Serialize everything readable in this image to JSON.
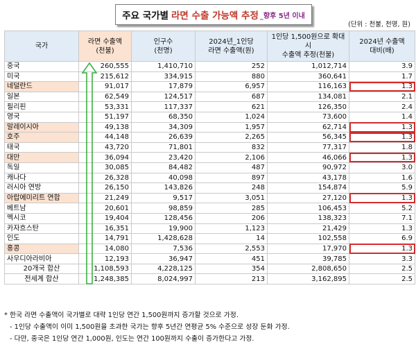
{
  "title": {
    "main": "주요 국가별",
    "highlight": "라면 수출 가능액 추정",
    "sub": "_향후 5년 이내"
  },
  "unit": "(단위 : 천불, 천명, 원)",
  "headers": [
    "국가",
    "라면 수출액\n(천불)",
    "인구수\n(천명)",
    "2024년_1인당\n라면 수출액(원)",
    "1인당 1,500원으로 확대시\n수출액 추정(천불)",
    "2024년 수출액\n대비(배)"
  ],
  "rows": [
    {
      "country": "중국",
      "export": "260,555",
      "pop": "1,410,710",
      "per": "252",
      "est": "1,012,714",
      "ratio": "3.9",
      "hl": false
    },
    {
      "country": "미국",
      "export": "215,612",
      "pop": "334,915",
      "per": "880",
      "est": "360,641",
      "ratio": "1.7",
      "hl": false
    },
    {
      "country": "네덜란드",
      "export": "91,017",
      "pop": "17,879",
      "per": "6,957",
      "est": "116,163",
      "ratio": "1.3",
      "hl": true
    },
    {
      "country": "일본",
      "export": "62,549",
      "pop": "124,517",
      "per": "687",
      "est": "134,081",
      "ratio": "2.1",
      "hl": false
    },
    {
      "country": "필리핀",
      "export": "53,331",
      "pop": "117,337",
      "per": "621",
      "est": "126,350",
      "ratio": "2.4",
      "hl": false
    },
    {
      "country": "영국",
      "export": "51,197",
      "pop": "68,350",
      "per": "1,024",
      "est": "73,600",
      "ratio": "1.4",
      "hl": false
    },
    {
      "country": "말레이시아",
      "export": "49,138",
      "pop": "34,309",
      "per": "1,957",
      "est": "62,714",
      "ratio": "1.3",
      "hl": true
    },
    {
      "country": "호주",
      "export": "44,148",
      "pop": "26,639",
      "per": "2,265",
      "est": "56,345",
      "ratio": "1.3",
      "hl": true
    },
    {
      "country": "태국",
      "export": "43,720",
      "pop": "71,801",
      "per": "832",
      "est": "77,317",
      "ratio": "1.8",
      "hl": false
    },
    {
      "country": "대만",
      "export": "36,094",
      "pop": "23,420",
      "per": "2,106",
      "est": "46,066",
      "ratio": "1.3",
      "hl": true
    },
    {
      "country": "독일",
      "export": "30,085",
      "pop": "84,482",
      "per": "487",
      "est": "90,972",
      "ratio": "3.0",
      "hl": false
    },
    {
      "country": "캐나다",
      "export": "26,328",
      "pop": "40,098",
      "per": "897",
      "est": "43,178",
      "ratio": "1.6",
      "hl": false
    },
    {
      "country": "러시아 연방",
      "export": "26,150",
      "pop": "143,826",
      "per": "248",
      "est": "154,874",
      "ratio": "5.9",
      "hl": false
    },
    {
      "country": "아랍에미리트 연합",
      "export": "21,249",
      "pop": "9,517",
      "per": "3,051",
      "est": "27,120",
      "ratio": "1.3",
      "hl": true
    },
    {
      "country": "베트남",
      "export": "20,601",
      "pop": "98,859",
      "per": "285",
      "est": "106,453",
      "ratio": "5.2",
      "hl": false
    },
    {
      "country": "멕시코",
      "export": "19,404",
      "pop": "128,456",
      "per": "206",
      "est": "138,323",
      "ratio": "7.1",
      "hl": false
    },
    {
      "country": "카자흐스탄",
      "export": "16,351",
      "pop": "19,900",
      "per": "1,123",
      "est": "21,429",
      "ratio": "1.3",
      "hl": false
    },
    {
      "country": "인도",
      "export": "14,791",
      "pop": "1,428,628",
      "per": "14",
      "est": "102,558",
      "ratio": "6.9",
      "hl": false
    },
    {
      "country": "홍콩",
      "export": "14,080",
      "pop": "7,536",
      "per": "2,553",
      "est": "17,970",
      "ratio": "1.3",
      "hl": true
    },
    {
      "country": "사우디아라비아",
      "export": "12,193",
      "pop": "36,947",
      "per": "451",
      "est": "39,785",
      "ratio": "3.3",
      "hl": false
    }
  ],
  "totals": [
    {
      "label": "20개국 합산",
      "export": "1,108,593",
      "pop": "4,228,125",
      "per": "354",
      "est": "2,808,650",
      "ratio": "2.5"
    },
    {
      "label": "전세계 합산",
      "export": "1,248,385",
      "pop": "8,024,997",
      "per": "213",
      "est": "3,162,895",
      "ratio": "2.5"
    }
  ],
  "notes": [
    "* 한국 라면 수출액이 국가별로 대략 1인당 연간 1,500원까지 증가할 것으로 가정.",
    " - 1인당 수출액이 이미 1,500원을 초과한 국가는 향후 5년간 연평균 5% 수준으로 성장 둔화 가정.",
    " - 다만, 중국은 1인당 연간 1,000원, 인도는 연간 100원까지 수출이 증가한다고 가정."
  ],
  "colors": {
    "header_bg": "#e2ecf6",
    "highlight_bg": "#fbe2d1",
    "box_red": "#d22c2c",
    "arrow_green": "#3cb043",
    "title_red": "#c0392b"
  }
}
